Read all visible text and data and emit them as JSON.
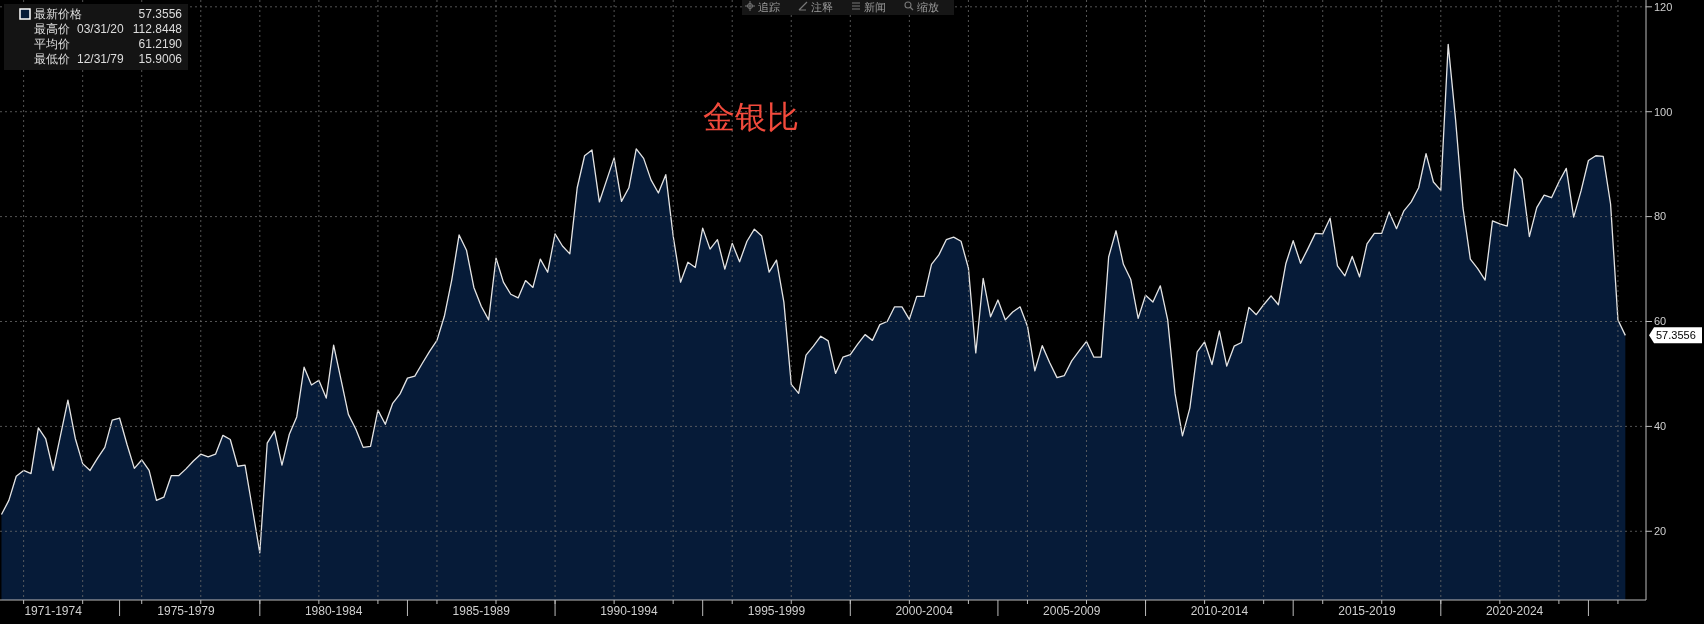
{
  "chart_data": {
    "type": "area",
    "title": "金银比",
    "categories": [
      null,
      null,
      null,
      null,
      null,
      null,
      null,
      "1971-1974",
      null,
      null,
      null,
      null,
      null,
      null,
      null,
      null,
      null,
      null,
      null,
      null,
      null,
      null,
      null,
      null,
      null,
      "1975-1979",
      null,
      null,
      null,
      null,
      null,
      null,
      null,
      null,
      null,
      null,
      null,
      null,
      null,
      null,
      null,
      null,
      null,
      null,
      null,
      "1980-1984",
      null,
      null,
      null,
      null,
      null,
      null,
      null,
      null,
      null,
      null,
      null,
      null,
      null,
      null,
      null,
      null,
      null,
      null,
      null,
      "1985-1989",
      null,
      null,
      null,
      null,
      null,
      null,
      null,
      null,
      null,
      null,
      null,
      null,
      null,
      null,
      null,
      null,
      null,
      null,
      null,
      "1990-1994",
      null,
      null,
      null,
      null,
      null,
      null,
      null,
      null,
      null,
      null,
      null,
      null,
      null,
      null,
      null,
      null,
      null,
      null,
      null,
      "1995-1999",
      null,
      null,
      null,
      null,
      null,
      null,
      null,
      null,
      null,
      null,
      null,
      null,
      null,
      null,
      null,
      null,
      null,
      null,
      null,
      "2000-2004",
      null,
      null,
      null,
      null,
      null,
      null,
      null,
      null,
      null,
      null,
      null,
      null,
      null,
      null,
      null,
      null,
      null,
      null,
      null,
      "2005-2009",
      null,
      null,
      null,
      null,
      null,
      null,
      null,
      null,
      null,
      null,
      null,
      null,
      null,
      null,
      null,
      null,
      null,
      null,
      null,
      "2010-2014",
      null,
      null,
      null,
      null,
      null,
      null,
      null,
      null,
      null,
      null,
      null,
      null,
      null,
      null,
      null,
      null,
      null,
      null,
      null,
      "2015-2019",
      null,
      null,
      null,
      null,
      null,
      null,
      null,
      null,
      null,
      null,
      null,
      null,
      null,
      null,
      null,
      null,
      null,
      null,
      null,
      "2020-2024",
      null,
      null,
      null,
      null,
      null,
      null,
      null,
      null,
      null,
      null,
      null,
      null,
      null,
      null,
      null
    ],
    "ylim": [
      6.9,
      121.3
    ],
    "yticks": [
      20,
      40,
      60,
      80,
      100,
      120
    ],
    "grid": true,
    "legend": "top left",
    "annotations": [
      "57.3556",
      "最高价 03/31/20 112.8448",
      "平均价 61.2190",
      "最低价 12/31/79 15.9006",
      "追踪",
      "注释",
      "新闻",
      "缩放",
      "57.3556"
    ],
    "series": [
      {
        "name": "最新价格",
        "color": "#061b38",
        "values": [
          23.2,
          25.9,
          30.5,
          31.6,
          31.0,
          39.7,
          37.6,
          31.6,
          38.3,
          45.0,
          37.7,
          32.9,
          31.6,
          33.9,
          36.0,
          41.2,
          41.6,
          36.6,
          32.0,
          33.6,
          31.6,
          25.9,
          26.5,
          30.6,
          30.6,
          31.9,
          33.4,
          34.7,
          34.2,
          34.7,
          38.3,
          37.5,
          32.4,
          32.6,
          24.3,
          15.9006,
          36.8,
          39.1,
          32.6,
          38.5,
          41.8,
          51.3,
          47.9,
          48.8,
          45.4,
          55.5,
          48.9,
          42.3,
          39.5,
          36.0,
          36.2,
          43.1,
          40.4,
          44.4,
          46.2,
          49.2,
          49.6,
          52.0,
          54.3,
          56.4,
          61.0,
          67.9,
          76.5,
          73.6,
          66.5,
          62.9,
          60.3,
          72.1,
          67.5,
          65.2,
          64.5,
          67.8,
          66.5,
          71.9,
          69.4,
          76.7,
          74.4,
          72.9,
          85.5,
          91.6,
          92.7,
          82.8,
          87.0,
          91.2,
          82.9,
          85.5,
          92.9,
          91.1,
          87.0,
          84.5,
          88.0,
          76.3,
          67.5,
          71.3,
          70.3,
          77.8,
          73.8,
          75.6,
          70.0,
          74.9,
          71.4,
          75.3,
          77.6,
          76.3,
          69.4,
          71.7,
          63.7,
          48.0,
          46.3,
          53.6,
          55.3,
          57.2,
          56.3,
          50.1,
          53.2,
          53.7,
          55.7,
          57.5,
          56.4,
          59.4,
          60.0,
          62.8,
          62.8,
          60.4,
          64.8,
          64.8,
          70.9,
          72.7,
          75.6,
          76.1,
          75.3,
          70.2,
          54.0,
          68.2,
          60.9,
          64.1,
          60.3,
          61.8,
          62.8,
          59.1,
          50.6,
          55.4,
          52.2,
          49.3,
          49.7,
          52.5,
          54.4,
          56.2,
          53.2,
          53.2,
          72.3,
          77.3,
          70.9,
          68.0,
          60.6,
          65.0,
          63.7,
          66.8,
          60.3,
          46.2,
          38.2,
          43.5,
          54.2,
          56.1,
          51.8,
          58.2,
          51.5,
          55.3,
          56.0,
          62.7,
          61.3,
          63.2,
          64.9,
          63.2,
          71.0,
          75.4,
          71.1,
          73.9,
          76.8,
          76.7,
          79.7,
          70.6,
          68.7,
          72.4,
          68.5,
          74.8,
          76.8,
          76.8,
          80.9,
          77.7,
          81.1,
          82.8,
          85.5,
          92.0,
          86.6,
          85.0,
          112.8448,
          98.5,
          81.7,
          71.9,
          70.1,
          67.9,
          79.2,
          78.6,
          78.2,
          89.1,
          87.2,
          76.2,
          81.7,
          84.1,
          83.6,
          86.6,
          89.2,
          79.9,
          84.9,
          90.7,
          91.6,
          91.5,
          82.4,
          60.3,
          57.3556
        ]
      }
    ]
  }
}
